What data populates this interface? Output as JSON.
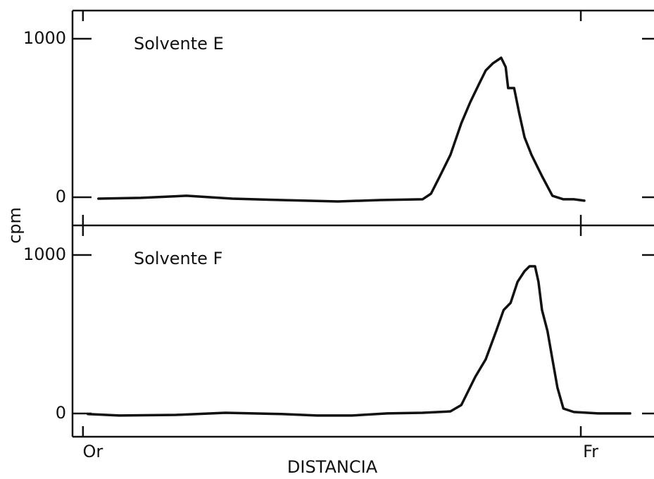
{
  "chart_data": [
    {
      "type": "line",
      "title": "Solvente E",
      "ylabel": "cpm",
      "color": "#111111",
      "xlim": [
        -0.021,
        1.147
      ],
      "ylim": [
        -178,
        1178
      ],
      "yticks": [
        0,
        1000
      ],
      "x": [
        0.031,
        0.116,
        0.208,
        0.3,
        0.399,
        0.512,
        0.597,
        0.682,
        0.699,
        0.717,
        0.738,
        0.76,
        0.778,
        0.795,
        0.809,
        0.823,
        0.84,
        0.849,
        0.854,
        0.866,
        0.876,
        0.887,
        0.901,
        0.922,
        0.943,
        0.965,
        0.986,
        1.007
      ],
      "values": [
        -9,
        -4,
        9,
        -9,
        -18,
        -27,
        -18,
        -13,
        22,
        133,
        267,
        467,
        600,
        711,
        800,
        844,
        880,
        822,
        689,
        689,
        533,
        378,
        267,
        133,
        9,
        -13,
        -13,
        -22
      ]
    },
    {
      "type": "line",
      "title": "Solvente F",
      "xlabel": "DISTANCIA",
      "color": "#111111",
      "xlim": [
        -0.021,
        1.147
      ],
      "ylim": [
        -147,
        1187
      ],
      "yticks": [
        0,
        1000
      ],
      "xticks": [
        {
          "value": 0,
          "label": "Or"
        },
        {
          "value": 1,
          "label": "Fr"
        }
      ],
      "x": [
        0.01,
        0.073,
        0.187,
        0.286,
        0.399,
        0.47,
        0.54,
        0.611,
        0.682,
        0.738,
        0.76,
        0.774,
        0.788,
        0.809,
        0.83,
        0.845,
        0.859,
        0.873,
        0.887,
        0.897,
        0.908,
        0.915,
        0.922,
        0.933,
        0.943,
        0.953,
        0.965,
        0.986,
        1.035,
        1.099
      ],
      "values": [
        -4,
        -13,
        -9,
        4,
        -4,
        -13,
        -13,
        0,
        4,
        13,
        53,
        142,
        231,
        342,
        520,
        653,
        698,
        831,
        898,
        929,
        929,
        831,
        653,
        520,
        342,
        164,
        31,
        9,
        0,
        0
      ]
    }
  ]
}
